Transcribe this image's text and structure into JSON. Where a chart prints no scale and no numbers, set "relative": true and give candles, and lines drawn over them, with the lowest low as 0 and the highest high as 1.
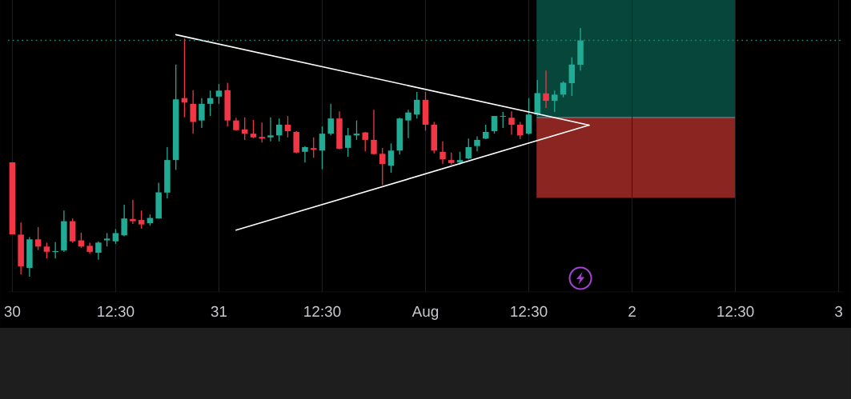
{
  "chart_data": {
    "type": "candlestick",
    "relative": true,
    "categories": [
      "30",
      null,
      null,
      null,
      null,
      null,
      null,
      null,
      null,
      null,
      null,
      null,
      "12:30",
      null,
      null,
      null,
      null,
      null,
      null,
      null,
      null,
      null,
      null,
      null,
      "31",
      null,
      null,
      null,
      null,
      null,
      null,
      null,
      null,
      null,
      null,
      null,
      "12:30",
      null,
      null,
      null,
      null,
      null,
      null,
      null,
      null,
      null,
      null,
      null,
      "Aug",
      null,
      null,
      null,
      null,
      null,
      null,
      null,
      null,
      null,
      null,
      null,
      "12:30",
      null,
      null,
      null,
      null,
      null,
      null,
      null,
      null,
      null,
      null,
      null,
      "2",
      null,
      null,
      null,
      null,
      null,
      null,
      null,
      null,
      null,
      null,
      null,
      "12:30",
      null,
      null,
      null,
      null,
      null,
      null,
      null,
      null,
      null,
      null,
      null,
      "3"
    ],
    "ohlc": [
      [
        0.46,
        0.46,
        0.17,
        0.17
      ],
      [
        0.169,
        0.218,
        0.009,
        0.041
      ],
      [
        0.035,
        0.159,
        0.0,
        0.15
      ],
      [
        0.15,
        0.199,
        0.107,
        0.121
      ],
      [
        0.121,
        0.137,
        0.073,
        0.1
      ],
      [
        0.099,
        0.139,
        0.073,
        0.103
      ],
      [
        0.105,
        0.266,
        0.1,
        0.223
      ],
      [
        0.223,
        0.234,
        0.137,
        0.142
      ],
      [
        0.146,
        0.177,
        0.116,
        0.121
      ],
      [
        0.124,
        0.137,
        0.092,
        0.1
      ],
      [
        0.096,
        0.142,
        0.068,
        0.137
      ],
      [
        0.146,
        0.175,
        0.121,
        0.153
      ],
      [
        0.142,
        0.191,
        0.132,
        0.175
      ],
      [
        0.166,
        0.289,
        0.162,
        0.234
      ],
      [
        0.232,
        0.309,
        0.212,
        0.223
      ],
      [
        0.228,
        0.266,
        0.193,
        0.21
      ],
      [
        0.215,
        0.25,
        0.205,
        0.236
      ],
      [
        0.234,
        0.378,
        0.234,
        0.339
      ],
      [
        0.338,
        0.521,
        0.314,
        0.469
      ],
      [
        0.469,
        0.853,
        0.429,
        0.713
      ],
      [
        0.718,
        0.957,
        0.641,
        0.7
      ],
      [
        0.695,
        0.75,
        0.575,
        0.622
      ],
      [
        0.628,
        0.718,
        0.598,
        0.695
      ],
      [
        0.695,
        0.748,
        0.646,
        0.718
      ],
      [
        0.724,
        0.775,
        0.695,
        0.748
      ],
      [
        0.75,
        0.78,
        0.604,
        0.628
      ],
      [
        0.628,
        0.639,
        0.587,
        0.589
      ],
      [
        0.592,
        0.641,
        0.55,
        0.575
      ],
      [
        0.575,
        0.63,
        0.557,
        0.56
      ],
      [
        0.562,
        0.62,
        0.539,
        0.555
      ],
      [
        0.56,
        0.641,
        0.544,
        0.568
      ],
      [
        0.568,
        0.636,
        0.544,
        0.611
      ],
      [
        0.611,
        0.646,
        0.56,
        0.585
      ],
      [
        0.582,
        0.585,
        0.496,
        0.499
      ],
      [
        0.502,
        0.525,
        0.459,
        0.521
      ],
      [
        0.517,
        0.56,
        0.478,
        0.51
      ],
      [
        0.507,
        0.604,
        0.432,
        0.575
      ],
      [
        0.575,
        0.695,
        0.568,
        0.636
      ],
      [
        0.636,
        0.665,
        0.512,
        0.514
      ],
      [
        0.518,
        0.598,
        0.482,
        0.568
      ],
      [
        0.568,
        0.628,
        0.55,
        0.575
      ],
      [
        0.58,
        0.582,
        0.504,
        0.55
      ],
      [
        0.55,
        0.671,
        0.491,
        0.493
      ],
      [
        0.494,
        0.518,
        0.368,
        0.453
      ],
      [
        0.446,
        0.536,
        0.418,
        0.507
      ],
      [
        0.507,
        0.639,
        0.491,
        0.636
      ],
      [
        0.628,
        0.671,
        0.557,
        0.66
      ],
      [
        0.652,
        0.743,
        0.636,
        0.711
      ],
      [
        0.711,
        0.743,
        0.587,
        0.611
      ],
      [
        0.611,
        0.622,
        0.496,
        0.507
      ],
      [
        0.502,
        0.544,
        0.453,
        0.472
      ],
      [
        0.469,
        0.499,
        0.45,
        0.457
      ],
      [
        0.459,
        0.502,
        0.45,
        0.469
      ],
      [
        0.475,
        0.555,
        0.472,
        0.521
      ],
      [
        0.525,
        0.564,
        0.504,
        0.55
      ],
      [
        0.555,
        0.611,
        0.553,
        0.582
      ],
      [
        0.585,
        0.646,
        0.575,
        0.646
      ],
      [
        0.643,
        0.662,
        0.598,
        0.646
      ],
      [
        0.639,
        0.665,
        0.571,
        0.611
      ],
      [
        0.611,
        0.622,
        0.553,
        0.568
      ],
      [
        0.575,
        0.718,
        0.571,
        0.652
      ],
      [
        0.652,
        0.791,
        0.646,
        0.738
      ],
      [
        0.737,
        0.829,
        0.678,
        0.707
      ],
      [
        0.707,
        0.748,
        0.662,
        0.732
      ],
      [
        0.732,
        0.786,
        0.721,
        0.78
      ],
      [
        0.778,
        0.882,
        0.727,
        0.853
      ],
      [
        0.852,
        1.0,
        0.829,
        0.95
      ],
      null,
      null,
      null,
      null,
      null,
      null,
      null,
      null,
      null,
      null,
      null,
      null,
      null,
      null,
      null,
      null,
      null,
      null,
      null,
      null,
      null,
      null,
      null,
      null,
      null,
      null,
      null,
      null,
      null,
      null
    ],
    "colors": [
      "#f23645",
      "#f23645",
      "#22ab94",
      "#f23645",
      "#f23645",
      "#22ab94",
      "#22ab94",
      "#f23645",
      "#f23645",
      "#f23645",
      "#22ab94",
      "#22ab94",
      "#22ab94",
      "#22ab94",
      "#f23645",
      "#f23645",
      "#22ab94",
      "#22ab94",
      "#22ab94",
      "#22ab94",
      "#f23645",
      "#f23645",
      "#22ab94",
      "#22ab94",
      "#22ab94",
      "#f23645",
      "#f23645",
      "#f23645",
      "#f23645",
      "#f23645",
      "#22ab94",
      "#22ab94",
      "#f23645",
      "#f23645",
      "#22ab94",
      "#f23645",
      "#22ab94",
      "#22ab94",
      "#f23645",
      "#22ab94",
      "#22ab94",
      "#f23645",
      "#f23645",
      "#f23645",
      "#22ab94",
      "#22ab94",
      "#22ab94",
      "#22ab94",
      "#f23645",
      "#f23645",
      "#f23645",
      "#f23645",
      "#22ab94",
      "#22ab94",
      "#22ab94",
      "#22ab94",
      "#22ab94",
      "#22ab94",
      "#f23645",
      "#f23645",
      "#22ab94",
      "#22ab94",
      "#f23645",
      "#22ab94",
      "#22ab94",
      "#22ab94",
      "#22ab94",
      null,
      null,
      null,
      null,
      null,
      null,
      null,
      null,
      null,
      null,
      null,
      null,
      null,
      null,
      null,
      null,
      null,
      null,
      null,
      null,
      null,
      null,
      null,
      null,
      null,
      null,
      null,
      null,
      null,
      null
    ],
    "series": [
      {
        "type": "line",
        "color": "#ffffff",
        "values": [
          null,
          null,
          null,
          null,
          null,
          null,
          null,
          null,
          null,
          null,
          null,
          null,
          null,
          null,
          null,
          null,
          null,
          null,
          null,
          0.973,
          null,
          null,
          null,
          null,
          null,
          null,
          null,
          null,
          null,
          null,
          null,
          null,
          null,
          null,
          null,
          null,
          null,
          null,
          null,
          null,
          null,
          null,
          null,
          null,
          null,
          null,
          null,
          null,
          null,
          null,
          null,
          null,
          null,
          null,
          null,
          null,
          null,
          null,
          null,
          null,
          null,
          null,
          null,
          null,
          null,
          null,
          null,
          0.609,
          null,
          null,
          null,
          null,
          null,
          null,
          null,
          null,
          null,
          null,
          null,
          null,
          null,
          null,
          null,
          null,
          null,
          null,
          null,
          null,
          null,
          null,
          null,
          null,
          null,
          null,
          null,
          null,
          null
        ]
      },
      {
        "type": "line",
        "color": "#ffffff",
        "values": [
          null,
          null,
          null,
          null,
          null,
          null,
          null,
          null,
          null,
          null,
          null,
          null,
          null,
          null,
          null,
          null,
          null,
          null,
          null,
          null,
          null,
          null,
          null,
          null,
          null,
          null,
          0.187,
          null,
          null,
          null,
          null,
          null,
          null,
          null,
          null,
          null,
          null,
          null,
          null,
          null,
          null,
          null,
          null,
          null,
          null,
          null,
          null,
          null,
          null,
          null,
          null,
          null,
          null,
          null,
          null,
          null,
          null,
          null,
          null,
          null,
          null,
          null,
          null,
          null,
          null,
          null,
          null,
          0.609,
          null,
          null,
          null,
          null,
          null,
          null,
          null,
          null,
          null,
          null,
          null,
          null,
          null,
          null,
          null,
          null,
          null,
          null,
          null,
          null,
          null,
          null,
          null,
          null,
          null,
          null,
          null,
          null,
          null
        ]
      }
    ],
    "ref_lines": [
      {
        "axis": "y",
        "value": 0.95,
        "color": "#1f8f7c",
        "line_style": "dotted"
      }
    ],
    "tick_labels": "x",
    "grid": true
  }
}
